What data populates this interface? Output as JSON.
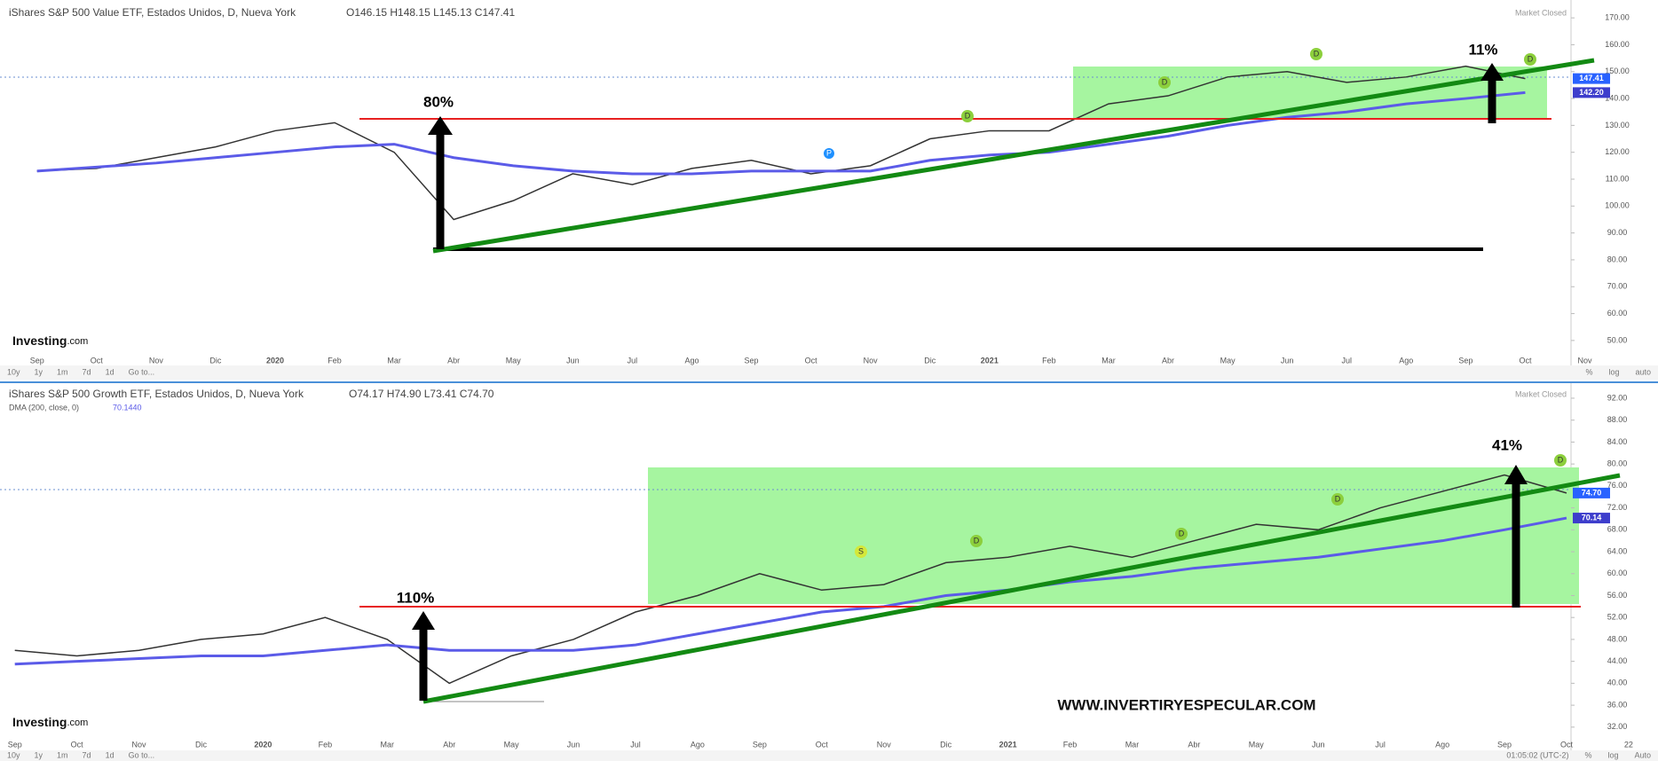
{
  "chart_data": [
    {
      "type": "line",
      "title": "iShares S&P 500 Value ETF, Estados Unidos, D, Nueva York",
      "ohlc": "O146.15 H148.15 L145.13 C147.41",
      "status": "Market Closed",
      "logo": "Investing",
      "logo_suffix": ".com",
      "annotations": [
        "80%",
        "11%"
      ],
      "events": [
        "D",
        "D",
        "D",
        "D",
        "P"
      ],
      "toolbar": [
        "10y",
        "1y",
        "1m",
        "7d",
        "1d",
        "Go to..."
      ],
      "toolbar_right": [
        "%",
        "log",
        "auto"
      ],
      "categories": [
        "Sep",
        "Oct",
        "Nov",
        "Dic",
        "2020",
        "Feb",
        "Mar",
        "Abr",
        "May",
        "Jun",
        "Jul",
        "Ago",
        "Sep",
        "Oct",
        "Nov",
        "Dic",
        "2021",
        "Feb",
        "Mar",
        "Abr",
        "May",
        "Jun",
        "Jul",
        "Ago",
        "Sep",
        "Oct",
        "Nov"
      ],
      "series": [
        {
          "color": "#333333",
          "values": [
            113,
            114,
            118,
            122,
            128,
            131,
            120,
            95,
            102,
            112,
            108,
            114,
            117,
            112,
            115,
            125,
            128,
            128,
            138,
            141,
            148,
            150,
            146,
            148,
            152,
            147.41,
            null
          ]
        },
        {
          "color": "#5b5be8",
          "values": [
            113,
            114.5,
            116,
            118,
            120,
            122,
            123,
            118,
            115,
            113,
            112,
            112,
            113,
            113,
            113,
            117,
            119,
            120,
            123,
            126,
            130,
            133,
            135,
            138,
            140,
            142.2,
            null
          ]
        }
      ],
      "price_labels": [
        {
          "value": 147.41,
          "label": "147.41",
          "color": "#2962ff"
        },
        {
          "value": 142.2,
          "label": "142.20",
          "color": "#3d3dcc"
        }
      ],
      "ylim": [
        46,
        174
      ],
      "yticks": [
        {
          "value": 50,
          "label": "50.00"
        },
        {
          "value": 60,
          "label": "60.00"
        },
        {
          "value": 70,
          "label": "70.00"
        },
        {
          "value": 80,
          "label": "80.00"
        },
        {
          "value": 90,
          "label": "90.00"
        },
        {
          "value": 100,
          "label": "100.00"
        },
        {
          "value": 110,
          "label": "110.00"
        },
        {
          "value": 120,
          "label": "120.00"
        },
        {
          "value": 130,
          "label": "130.00"
        },
        {
          "value": 140,
          "label": "140.00"
        },
        {
          "value": 150,
          "label": "150.00"
        },
        {
          "value": 160,
          "label": "160.00"
        },
        {
          "value": 170,
          "label": "170.00"
        }
      ]
    },
    {
      "type": "line",
      "title": "iShares S&P 500 Growth ETF, Estados Unidos, D, Nueva York",
      "ohlc": "O74.17 H74.90 L73.41 C74.70",
      "status": "Market Closed",
      "logo": "Investing",
      "logo_suffix": ".com",
      "indicator": "DMA (200, close, 0)",
      "indicator_value": "70.1440",
      "annotations": [
        "110%",
        "41%"
      ],
      "events": [
        "S",
        "D",
        "D",
        "D",
        "D"
      ],
      "watermark": "WWW.INVERTIRYESPECULAR.COM",
      "toolbar": [
        "10y",
        "1y",
        "1m",
        "7d",
        "1d",
        "Go to..."
      ],
      "toolbar_right": [
        "01:05:02 (UTC-2)",
        "%",
        "log",
        "Auto"
      ],
      "categories": [
        "Sep",
        "Oct",
        "Nov",
        "Dic",
        "2020",
        "Feb",
        "Mar",
        "Abr",
        "May",
        "Jun",
        "Jul",
        "Ago",
        "Sep",
        "Oct",
        "Nov",
        "Dic",
        "2021",
        "Feb",
        "Mar",
        "Abr",
        "May",
        "Jun",
        "Jul",
        "Ago",
        "Sep",
        "Oct",
        "22"
      ],
      "series": [
        {
          "color": "#333333",
          "values": [
            46,
            45,
            46,
            48,
            49,
            52,
            48,
            40,
            45,
            48,
            53,
            56,
            60,
            57,
            58,
            62,
            63,
            65,
            63,
            66,
            69,
            68,
            72,
            75,
            78,
            74.7,
            null
          ]
        },
        {
          "color": "#5b5be8",
          "values": [
            43.5,
            44,
            44.5,
            45,
            45,
            46,
            47,
            46,
            46,
            46,
            47,
            49,
            51,
            53,
            54,
            56,
            57,
            58.5,
            59.5,
            61,
            62,
            63,
            64.5,
            66,
            68,
            70.14,
            null
          ]
        }
      ],
      "price_labels": [
        {
          "value": 74.7,
          "label": "74.70",
          "color": "#2962ff"
        },
        {
          "value": 70.14,
          "label": "70.14",
          "color": "#3d3dcc"
        }
      ],
      "ylim": [
        31,
        94
      ],
      "yticks": [
        {
          "value": 32,
          "label": "32.00"
        },
        {
          "value": 36,
          "label": "36.00"
        },
        {
          "value": 40,
          "label": "40.00"
        },
        {
          "value": 44,
          "label": "44.00"
        },
        {
          "value": 48,
          "label": "48.00"
        },
        {
          "value": 52,
          "label": "52.00"
        },
        {
          "value": 56,
          "label": "56.00"
        },
        {
          "value": 60,
          "label": "60.00"
        },
        {
          "value": 64,
          "label": "64.00"
        },
        {
          "value": 68,
          "label": "68.00"
        },
        {
          "value": 72,
          "label": "72.00"
        },
        {
          "value": 76,
          "label": "76.00"
        },
        {
          "value": 80,
          "label": "80.00"
        },
        {
          "value": 84,
          "label": "84.00"
        },
        {
          "value": 88,
          "label": "88.00"
        },
        {
          "value": 92,
          "label": "92.00"
        }
      ]
    }
  ]
}
